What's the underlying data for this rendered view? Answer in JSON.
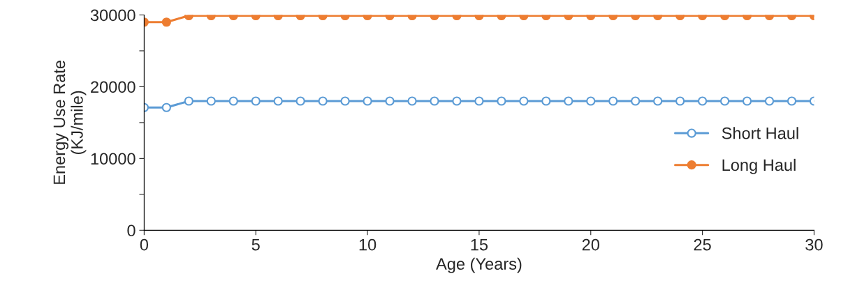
{
  "chart_data": {
    "type": "line",
    "xlabel": "Age (Years)",
    "ylabel": "Energy Use Rate\n(KJ/mile)",
    "x": [
      0,
      1,
      2,
      3,
      4,
      5,
      6,
      7,
      8,
      9,
      10,
      11,
      12,
      13,
      14,
      15,
      16,
      17,
      18,
      19,
      20,
      21,
      22,
      23,
      24,
      25,
      26,
      27,
      28,
      29,
      30
    ],
    "series": [
      {
        "name": "Short Haul",
        "color": "#5b9bd5",
        "marker": "circle",
        "values": [
          17100,
          17100,
          18000,
          18000,
          18000,
          18000,
          18000,
          18000,
          18000,
          18000,
          18000,
          18000,
          18000,
          18000,
          18000,
          18000,
          18000,
          18000,
          18000,
          18000,
          18000,
          18000,
          18000,
          18000,
          18000,
          18000,
          18000,
          18000,
          18000,
          18000,
          18000
        ]
      },
      {
        "name": "Long Haul",
        "color": "#ed7d31",
        "marker": "circle",
        "values": [
          29000,
          29000,
          29900,
          29900,
          29900,
          29900,
          29900,
          29900,
          29900,
          29900,
          29900,
          29900,
          29900,
          29900,
          29900,
          29900,
          29900,
          29900,
          29900,
          29900,
          29900,
          29900,
          29900,
          29900,
          29900,
          29900,
          29900,
          29900,
          29900,
          29900,
          29900
        ]
      }
    ],
    "xlim": [
      0,
      30
    ],
    "xticks": [
      0,
      5,
      10,
      15,
      20,
      25,
      30
    ],
    "ylim": [
      0,
      30000
    ],
    "yticks": [
      0,
      {
        "value": 5000,
        "label": null
      },
      10000,
      {
        "value": 15000,
        "label": null
      },
      20000,
      {
        "value": 25000,
        "label": null
      },
      30000
    ],
    "grid": false,
    "legend": "right",
    "line_style": "solid"
  }
}
